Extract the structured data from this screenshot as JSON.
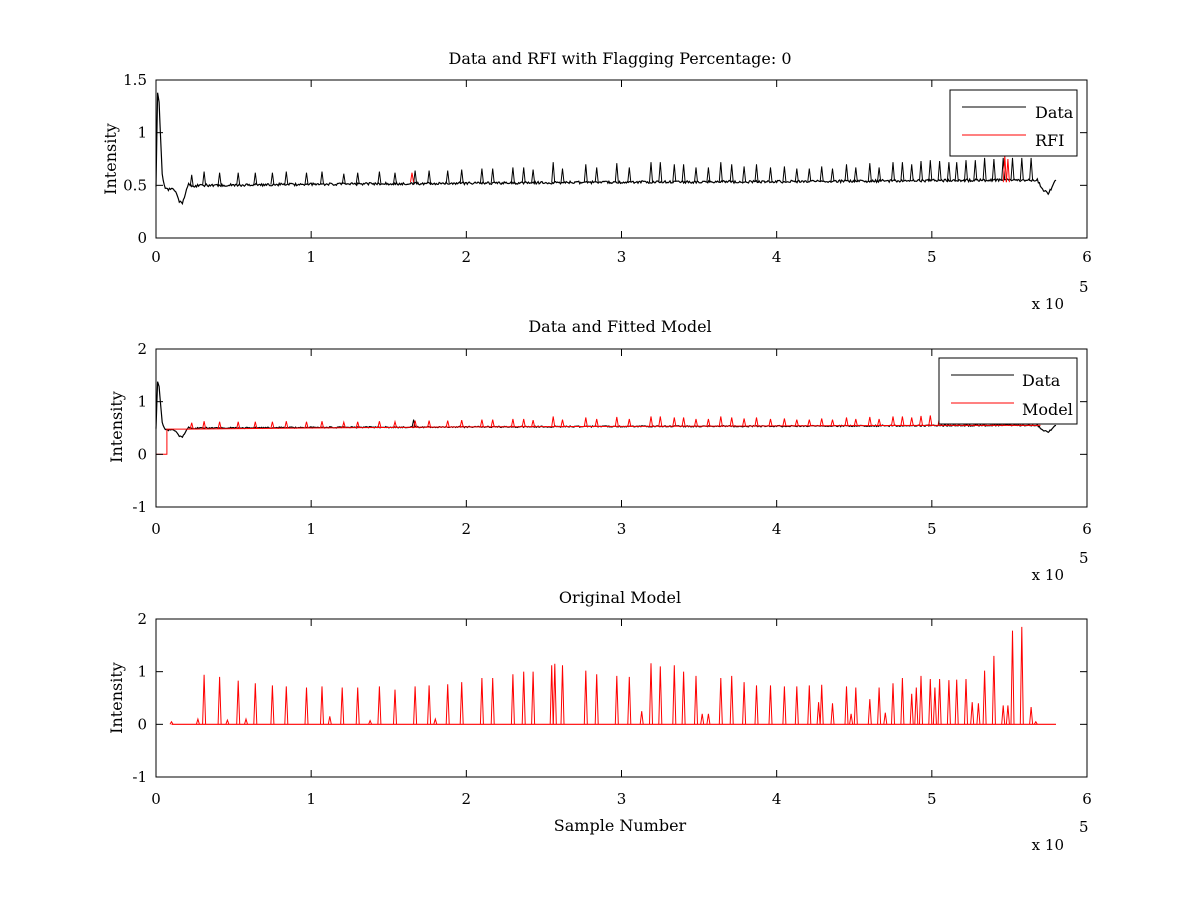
{
  "chart_data": [
    {
      "type": "line",
      "title": "Data and RFI with Flagging Percentage: 0",
      "xlabel": "",
      "ylabel": "Intensity",
      "xlim": [
        0,
        6
      ],
      "ylim": [
        0,
        1.5
      ],
      "x_multiplier": "x 10",
      "x_multiplier_exp": "5",
      "x_ticks": [
        "0",
        "1",
        "2",
        "3",
        "4",
        "5",
        "6"
      ],
      "y_ticks": [
        "0",
        "0.5",
        "1",
        "1.5"
      ],
      "legend": [
        "Data",
        "RFI"
      ],
      "legend_position": "top-right",
      "series": [
        {
          "name": "Data",
          "color": "#000000",
          "baseline_x": [
            0,
            0.01,
            0.02,
            0.04,
            0.06,
            0.08,
            0.1,
            0.12,
            0.15,
            0.17,
            0.19,
            0.21,
            0.23,
            0.3,
            1.0,
            2.0,
            3.0,
            4.0,
            5.0,
            5.6,
            5.68,
            5.72,
            5.75,
            5.78,
            5.8
          ],
          "baseline_y": [
            0.5,
            1.38,
            1.3,
            0.6,
            0.47,
            0.46,
            0.47,
            0.46,
            0.34,
            0.33,
            0.42,
            0.52,
            0.49,
            0.5,
            0.51,
            0.52,
            0.53,
            0.535,
            0.545,
            0.55,
            0.55,
            0.45,
            0.42,
            0.5,
            0.55
          ],
          "spike_x": [
            0.23,
            0.31,
            0.41,
            0.53,
            0.64,
            0.75,
            0.84,
            0.97,
            1.07,
            1.21,
            1.3,
            1.44,
            1.54,
            1.67,
            1.76,
            1.88,
            1.97,
            2.1,
            2.17,
            2.3,
            2.37,
            2.43,
            2.56,
            2.62,
            2.77,
            2.84,
            2.97,
            3.05,
            3.19,
            3.25,
            3.34,
            3.4,
            3.48,
            3.56,
            3.64,
            3.71,
            3.79,
            3.87,
            3.96,
            4.05,
            4.13,
            4.21,
            4.29,
            4.36,
            4.45,
            4.51,
            4.6,
            4.66,
            4.75,
            4.81,
            4.87,
            4.93,
            4.99,
            5.05,
            5.11,
            5.16,
            5.22,
            5.28,
            5.34,
            5.4,
            5.46,
            5.52,
            5.58,
            5.64
          ],
          "spike_y": [
            0.6,
            0.63,
            0.62,
            0.62,
            0.62,
            0.62,
            0.63,
            0.62,
            0.63,
            0.61,
            0.62,
            0.63,
            0.62,
            0.64,
            0.64,
            0.64,
            0.65,
            0.66,
            0.66,
            0.67,
            0.67,
            0.65,
            0.72,
            0.66,
            0.7,
            0.67,
            0.71,
            0.67,
            0.72,
            0.72,
            0.7,
            0.7,
            0.67,
            0.67,
            0.72,
            0.7,
            0.68,
            0.7,
            0.67,
            0.68,
            0.66,
            0.66,
            0.68,
            0.66,
            0.7,
            0.67,
            0.71,
            0.67,
            0.72,
            0.72,
            0.7,
            0.73,
            0.74,
            0.73,
            0.72,
            0.72,
            0.74,
            0.74,
            0.76,
            0.75,
            0.76,
            0.76,
            0.76,
            0.76
          ]
        },
        {
          "name": "RFI",
          "color": "#ff0000",
          "spike_x": [
            1.65,
            5.47,
            5.49
          ],
          "spike_y": [
            0.62,
            0.78,
            0.75
          ]
        }
      ]
    },
    {
      "type": "line",
      "title": "Data and Fitted Model",
      "xlabel": "",
      "ylabel": "Intensity",
      "xlim": [
        0,
        6
      ],
      "ylim": [
        -1,
        2
      ],
      "x_multiplier": "x 10",
      "x_multiplier_exp": "5",
      "x_ticks": [
        "0",
        "1",
        "2",
        "3",
        "4",
        "5",
        "6"
      ],
      "y_ticks": [
        "-1",
        "0",
        "1",
        "2"
      ],
      "legend": [
        "Data",
        "Model"
      ],
      "legend_position": "top-right",
      "series": [
        {
          "name": "Data",
          "color": "#000000",
          "baseline_x": [
            0,
            0.01,
            0.02,
            0.04,
            0.06,
            0.08,
            0.1,
            0.12,
            0.15,
            0.17,
            0.19,
            0.21,
            0.23,
            0.3,
            1.0,
            2.0,
            3.0,
            4.0,
            5.0,
            5.6,
            5.68,
            5.72,
            5.75,
            5.78,
            5.8
          ],
          "baseline_y": [
            0.5,
            1.38,
            1.3,
            0.6,
            0.47,
            0.46,
            0.47,
            0.46,
            0.34,
            0.33,
            0.42,
            0.52,
            0.49,
            0.5,
            0.51,
            0.52,
            0.53,
            0.535,
            0.545,
            0.55,
            0.55,
            0.45,
            0.42,
            0.5,
            0.55
          ],
          "spike_x": [
            1.66
          ],
          "spike_y": [
            0.66
          ]
        },
        {
          "name": "Model",
          "color": "#ff0000",
          "step_x": [
            0,
            0.07,
            0.07,
            0.1,
            0.2,
            1.0,
            2.0,
            3.0,
            4.0,
            5.0,
            5.7
          ],
          "step_y": [
            0.0,
            0.0,
            0.48,
            0.48,
            0.48,
            0.5,
            0.52,
            0.53,
            0.54,
            0.55,
            0.55
          ],
          "spike_x": [
            0.23,
            0.31,
            0.41,
            0.53,
            0.64,
            0.75,
            0.84,
            0.97,
            1.07,
            1.21,
            1.3,
            1.44,
            1.54,
            1.67,
            1.76,
            1.88,
            1.97,
            2.1,
            2.17,
            2.3,
            2.37,
            2.43,
            2.56,
            2.62,
            2.77,
            2.84,
            2.97,
            3.05,
            3.19,
            3.25,
            3.34,
            3.4,
            3.48,
            3.56,
            3.64,
            3.71,
            3.79,
            3.87,
            3.96,
            4.05,
            4.13,
            4.21,
            4.29,
            4.36,
            4.45,
            4.51,
            4.6,
            4.66,
            4.75,
            4.81,
            4.87,
            4.93,
            4.99,
            5.05,
            5.11,
            5.16,
            5.22,
            5.28,
            5.34,
            5.4,
            5.46,
            5.52,
            5.58,
            5.64
          ],
          "spike_y": [
            0.6,
            0.63,
            0.62,
            0.62,
            0.62,
            0.62,
            0.63,
            0.62,
            0.63,
            0.61,
            0.62,
            0.63,
            0.62,
            0.64,
            0.64,
            0.64,
            0.65,
            0.66,
            0.66,
            0.67,
            0.67,
            0.65,
            0.72,
            0.66,
            0.7,
            0.67,
            0.71,
            0.67,
            0.72,
            0.72,
            0.7,
            0.7,
            0.67,
            0.67,
            0.72,
            0.7,
            0.68,
            0.7,
            0.67,
            0.68,
            0.66,
            0.66,
            0.68,
            0.66,
            0.7,
            0.67,
            0.71,
            0.67,
            0.72,
            0.72,
            0.7,
            0.73,
            0.74,
            0.73,
            0.72,
            0.72,
            0.74,
            0.74,
            0.76,
            0.75,
            0.76,
            0.76,
            0.76,
            0.76
          ]
        }
      ]
    },
    {
      "type": "line",
      "title": "Original Model",
      "xlabel": "Sample Number",
      "ylabel": "Intensity",
      "xlim": [
        0,
        6
      ],
      "ylim": [
        -1,
        2
      ],
      "x_multiplier": "x 10",
      "x_multiplier_exp": "5",
      "x_ticks": [
        "0",
        "1",
        "2",
        "3",
        "4",
        "5",
        "6"
      ],
      "y_ticks": [
        "-1",
        "0",
        "1",
        "2"
      ],
      "legend": [],
      "series": [
        {
          "color": "#ff0000",
          "baseline_x": [
            0.1,
            5.8
          ],
          "baseline_y": [
            0,
            0
          ],
          "spike_x": [
            0.1,
            0.27,
            0.31,
            0.41,
            0.46,
            0.53,
            0.58,
            0.64,
            0.75,
            0.84,
            0.97,
            1.07,
            1.12,
            1.2,
            1.3,
            1.38,
            1.44,
            1.54,
            1.67,
            1.76,
            1.8,
            1.88,
            1.97,
            2.1,
            2.17,
            2.3,
            2.37,
            2.43,
            2.55,
            2.57,
            2.62,
            2.77,
            2.84,
            2.97,
            3.05,
            3.13,
            3.19,
            3.25,
            3.34,
            3.4,
            3.48,
            3.52,
            3.56,
            3.64,
            3.71,
            3.79,
            3.87,
            3.96,
            4.05,
            4.13,
            4.21,
            4.27,
            4.29,
            4.36,
            4.45,
            4.48,
            4.51,
            4.6,
            4.66,
            4.7,
            4.75,
            4.81,
            4.87,
            4.9,
            4.93,
            4.99,
            5.02,
            5.05,
            5.11,
            5.16,
            5.22,
            5.26,
            5.3,
            5.34,
            5.4,
            5.46,
            5.49,
            5.52,
            5.58,
            5.64,
            5.67
          ],
          "spike_y": [
            0.05,
            0.1,
            0.94,
            0.9,
            0.08,
            0.83,
            0.1,
            0.78,
            0.74,
            0.72,
            0.7,
            0.72,
            0.15,
            0.7,
            0.7,
            0.07,
            0.72,
            0.66,
            0.72,
            0.74,
            0.1,
            0.76,
            0.8,
            0.88,
            0.88,
            0.95,
            1.0,
            1.0,
            1.12,
            1.15,
            1.12,
            1.02,
            0.95,
            0.92,
            0.9,
            0.25,
            1.16,
            1.1,
            1.12,
            1.0,
            0.92,
            0.2,
            0.2,
            0.88,
            0.92,
            0.8,
            0.74,
            0.74,
            0.72,
            0.72,
            0.74,
            0.42,
            0.75,
            0.4,
            0.72,
            0.2,
            0.7,
            0.48,
            0.7,
            0.22,
            0.78,
            0.88,
            0.58,
            0.7,
            0.92,
            0.86,
            0.7,
            0.86,
            0.84,
            0.85,
            0.86,
            0.42,
            0.4,
            1.02,
            1.3,
            0.36,
            0.36,
            1.78,
            1.85,
            0.33,
            0.05
          ]
        }
      ]
    }
  ]
}
